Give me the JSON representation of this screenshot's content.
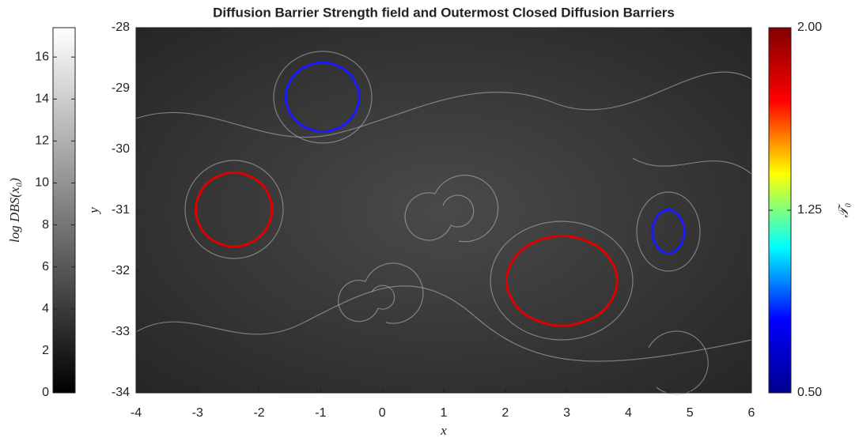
{
  "chart_data": {
    "type": "contour",
    "title": "Diffusion Barrier Strength field and Outermost Closed Diffusion Barriers",
    "xlabel": "x",
    "ylabel": "y",
    "xlim": [
      -4,
      6
    ],
    "xticks": [
      -4,
      -3,
      -2,
      -1,
      0,
      1,
      2,
      3,
      4,
      5,
      6
    ],
    "ylim": [
      -34,
      -28
    ],
    "yticks": [
      -34,
      -33,
      -32,
      -31,
      -30,
      -29,
      -28
    ],
    "series": [
      {
        "color": "#1a1aff",
        "x": [
          -0.37,
          -0.55,
          -0.97,
          -1.39,
          -1.57,
          -1.39,
          -0.97,
          -0.55
        ],
        "y": [
          -29.14,
          -28.74,
          -28.57,
          -28.74,
          -29.14,
          -29.54,
          -29.71,
          -29.54
        ]
      },
      {
        "color": "#e00000",
        "x": [
          -1.79,
          -1.97,
          -2.41,
          -2.85,
          -3.03,
          -2.85,
          -2.41,
          -1.97
        ],
        "y": [
          -30.99,
          -30.56,
          -30.38,
          -30.56,
          -30.99,
          -31.42,
          -31.6,
          -31.42
        ]
      },
      {
        "color": "#e00000",
        "x": [
          3.82,
          3.56,
          2.92,
          2.28,
          2.02,
          2.28,
          2.92,
          3.56
        ],
        "y": [
          -32.16,
          -31.64,
          -31.42,
          -31.64,
          -32.16,
          -32.68,
          -32.9,
          -32.68
        ]
      },
      {
        "color": "#1a1aff",
        "x": [
          4.91,
          4.83,
          4.65,
          4.47,
          4.39,
          4.47,
          4.65,
          4.83
        ],
        "y": [
          -31.35,
          -31.1,
          -30.99,
          -31.1,
          -31.35,
          -31.6,
          -31.71,
          -31.6
        ]
      }
    ],
    "colorbars": [
      {
        "label": "log DBS(x₀)",
        "lim": [
          0,
          17.4
        ],
        "ticks": [
          0,
          2,
          4,
          6,
          8,
          10,
          12,
          14,
          16
        ],
        "colors": [
          "#000000",
          "#ffffff"
        ]
      },
      {
        "label": "𝒯₀",
        "lim": [
          0.5,
          2
        ],
        "ticks": [
          {
            "value": 0.5,
            "label": "0.50"
          },
          {
            "value": 1.25,
            "label": "1.25"
          },
          {
            "value": 2,
            "label": "2.00"
          }
        ],
        "colors": [
          "#00008f",
          "#0000ff",
          "#00ffff",
          "#ffff00",
          "#ff0000",
          "#800000"
        ]
      }
    ]
  }
}
